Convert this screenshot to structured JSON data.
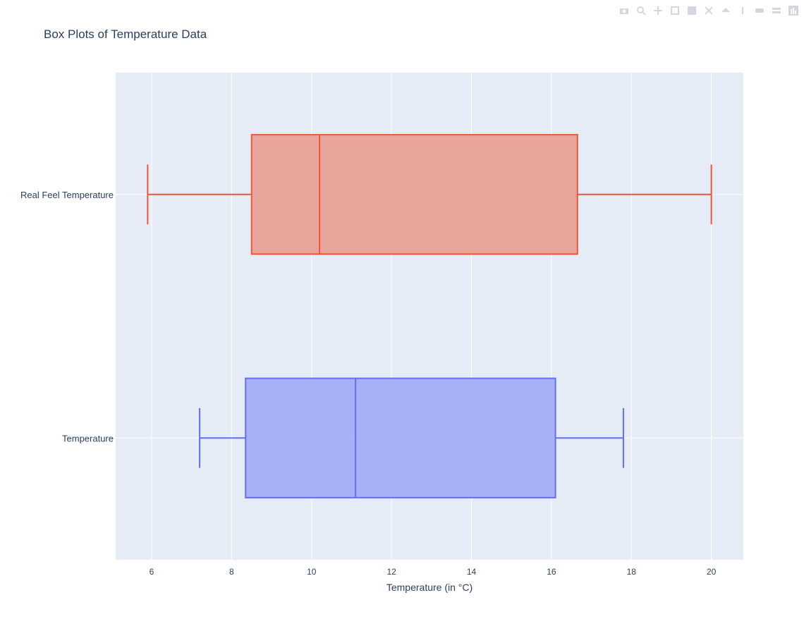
{
  "chart_data": {
    "type": "box",
    "orientation": "horizontal",
    "title": "Box Plots of Temperature Data",
    "xlabel": "Temperature (in °C)",
    "ylabel": "",
    "xlim": [
      5.1,
      20.8
    ],
    "xticks": [
      6,
      8,
      10,
      12,
      14,
      16,
      18,
      20
    ],
    "grid": true,
    "legend": "none",
    "series": [
      {
        "name": "Temperature",
        "color": "#636efa",
        "fill": "#a4adf7",
        "min": 7.2,
        "q1": 8.35,
        "median": 11.1,
        "q3": 16.1,
        "max": 17.8
      },
      {
        "name": "Real Feel Temperature",
        "color": "#ef553b",
        "fill": "#e9a097",
        "min": 5.9,
        "q1": 8.5,
        "median": 10.2,
        "q3": 16.65,
        "max": 20.0
      }
    ]
  },
  "modebar": {
    "icons": [
      "camera-icon",
      "zoom-icon",
      "pan-icon",
      "box-select-icon",
      "lasso-select-icon",
      "zoom-in-icon",
      "zoom-out-icon",
      "autoscale-icon",
      "reset-axes-icon",
      "spike-lines-icon",
      "hover-closest-icon",
      "hover-compare-icon",
      "plotly-logo-icon"
    ]
  }
}
